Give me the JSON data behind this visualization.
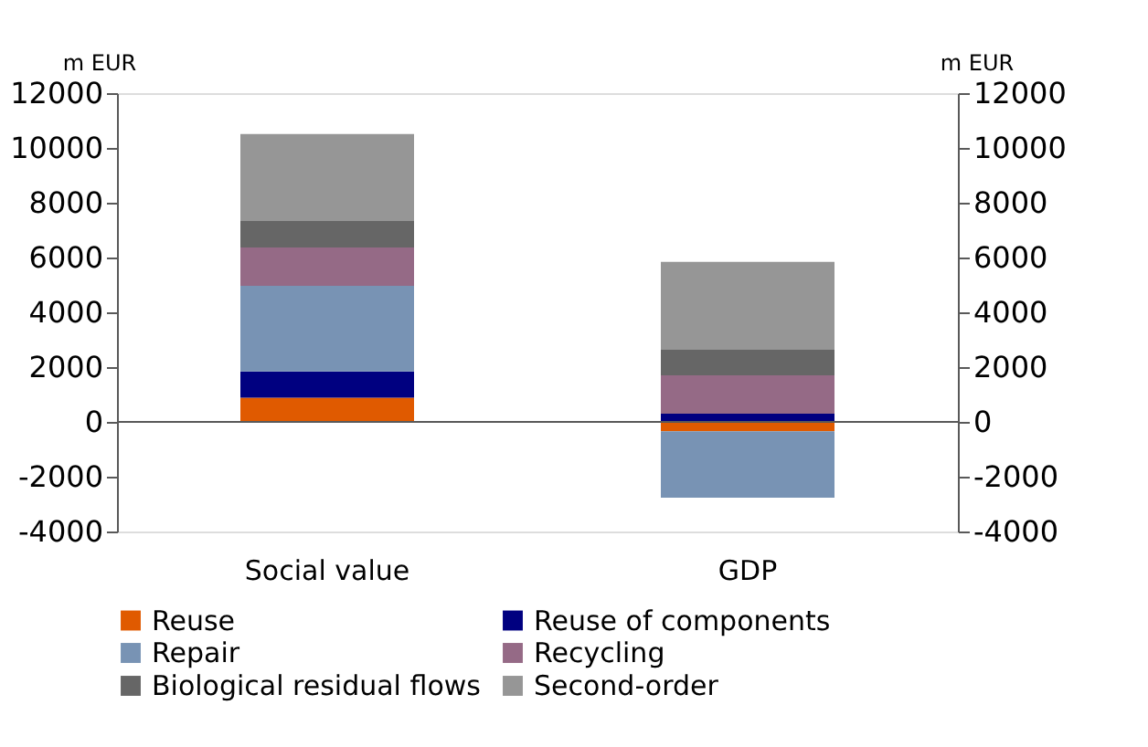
{
  "chart_data": {
    "type": "bar",
    "stacked": true,
    "categories": [
      "Social value",
      "GDP"
    ],
    "ylabel": "m EUR",
    "y2label": "m EUR",
    "ylim": [
      -4000,
      12000
    ],
    "yticks": [
      -4000,
      -2000,
      0,
      2000,
      4000,
      6000,
      8000,
      10000,
      12000
    ],
    "y2lim": [
      -4000,
      12000
    ],
    "y2ticks": [
      -4000,
      -2000,
      0,
      2000,
      4000,
      6000,
      8000,
      10000,
      12000
    ],
    "ref_lines": [
      {
        "axis": "y2",
        "value": 0,
        "color": "#595959"
      }
    ],
    "grid": false,
    "legend": "bottom",
    "series": [
      {
        "name": "Reuse",
        "color": "#e05a00",
        "values": [
          880,
          -340
        ]
      },
      {
        "name": "Reuse of components",
        "color": "#000080",
        "values": [
          960,
          300
        ]
      },
      {
        "name": "Repair",
        "color": "#7893b4",
        "values": [
          3130,
          -2430
        ]
      },
      {
        "name": "Recycling",
        "color": "#956a86",
        "values": [
          1400,
          1400
        ]
      },
      {
        "name": "Biological residual flows",
        "color": "#666666",
        "values": [
          960,
          930
        ]
      },
      {
        "name": "Second-order",
        "color": "#969696",
        "values": [
          3180,
          3210
        ]
      }
    ]
  }
}
